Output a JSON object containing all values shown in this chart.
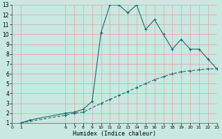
{
  "xlabel": "Humidex (Indice chaleur)",
  "bg_color": "#c8e8e0",
  "line_color": "#1a6b6b",
  "grid_color": "#e8a0a8",
  "xticks": [
    0,
    1,
    6,
    7,
    8,
    9,
    10,
    11,
    12,
    13,
    14,
    15,
    16,
    17,
    18,
    19,
    20,
    21,
    22,
    23
  ],
  "yticks": [
    1,
    2,
    3,
    4,
    5,
    6,
    7,
    8,
    9,
    10,
    11,
    12,
    13
  ],
  "xlim": [
    0,
    23
  ],
  "ylim": [
    1,
    13
  ],
  "curve1_x": [
    1,
    2,
    6,
    7,
    8,
    9,
    10,
    11,
    12,
    13,
    14,
    15,
    16,
    17,
    18,
    19,
    20,
    21,
    22,
    23
  ],
  "curve1_y": [
    1,
    1.3,
    2.0,
    2.1,
    2.4,
    3.2,
    10.2,
    13.0,
    13.0,
    12.2,
    13.0,
    10.5,
    11.5,
    10.0,
    8.5,
    9.5,
    8.5,
    8.5,
    7.5,
    6.5
  ],
  "curve2_x": [
    1,
    6,
    7,
    8,
    10,
    11,
    12,
    13,
    14,
    15,
    16,
    17,
    18,
    19,
    20,
    21,
    22,
    23
  ],
  "curve2_y": [
    1,
    1.8,
    2.0,
    2.1,
    3.0,
    3.4,
    3.8,
    4.2,
    4.6,
    5.0,
    5.4,
    5.7,
    6.0,
    6.2,
    6.3,
    6.4,
    6.5,
    6.5
  ]
}
